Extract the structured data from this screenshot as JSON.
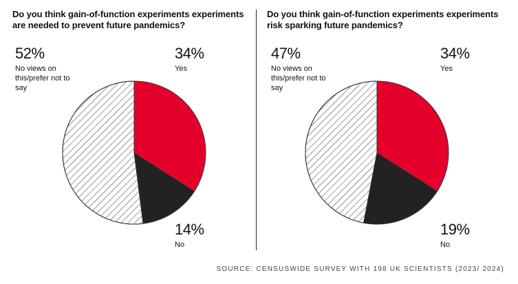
{
  "colors": {
    "yes": "#e4002b",
    "no": "#222222",
    "neutral_stroke": "#333333",
    "background": "#ffffff"
  },
  "chart_data": [
    {
      "type": "pie",
      "title": "Do you think gain-of-function experiments experiments are needed to prevent future pandemics?",
      "slices": [
        {
          "label": "Yes",
          "value": 34,
          "value_label": "34%",
          "fill": "red"
        },
        {
          "label": "No",
          "value": 14,
          "value_label": "14%",
          "fill": "black"
        },
        {
          "label": "No views on this/prefer not to say",
          "value": 52,
          "value_label": "52%",
          "fill": "hatch"
        }
      ]
    },
    {
      "type": "pie",
      "title": "Do you think gain-of-function experiments experiments risk sparking future pandemics?",
      "slices": [
        {
          "label": "Yes",
          "value": 34,
          "value_label": "34%",
          "fill": "red"
        },
        {
          "label": "No",
          "value": 19,
          "value_label": "19%",
          "fill": "black"
        },
        {
          "label": "No views on this/prefer not to say",
          "value": 47,
          "value_label": "47%",
          "fill": "hatch"
        }
      ]
    }
  ],
  "source": "SOURCE: CENSUSWIDE SURVEY WITH 198 UK SCIENTISTS (2023/ 2024)"
}
